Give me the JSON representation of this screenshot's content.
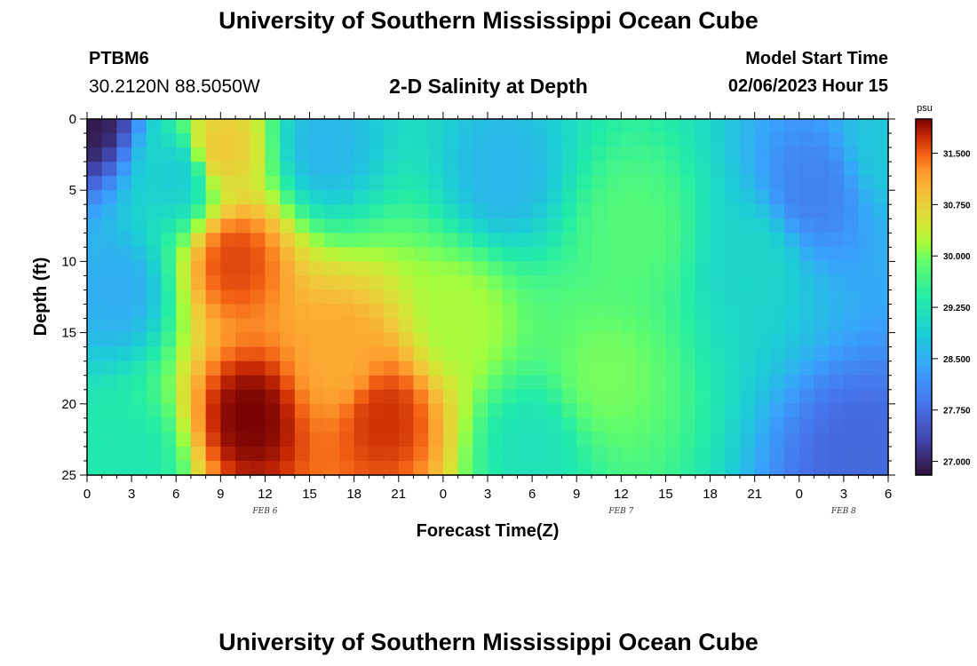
{
  "header": {
    "title": "University of Southern Mississippi Ocean Cube",
    "station_id": "PTBM6",
    "station_coords": "30.2120N  88.5050W",
    "plot_title": "2-D Salinity at Depth",
    "start_label": "Model Start Time",
    "start_value": "02/06/2023 Hour 15"
  },
  "footer": {
    "title": "University of Southern Mississippi Ocean Cube"
  },
  "chart_data": {
    "type": "heatmap",
    "xlabel": "Forecast Time(Z)",
    "ylabel": "Depth (ft)",
    "x_tick_labels": [
      "0",
      "3",
      "6",
      "9",
      "12",
      "15",
      "18",
      "21",
      "0",
      "3",
      "6",
      "9",
      "12",
      "15",
      "18",
      "21",
      "0",
      "3",
      "6"
    ],
    "x_range_hours": [
      0,
      54
    ],
    "date_labels": [
      {
        "label": "FEB 6",
        "hour": 12
      },
      {
        "label": "FEB 7",
        "hour": 36
      },
      {
        "label": "FEB 8",
        "hour": 51
      }
    ],
    "y_tick_labels": [
      "0",
      "5",
      "10",
      "15",
      "20",
      "25"
    ],
    "ylim": [
      0,
      25
    ],
    "y_inverted": true,
    "colorbar": {
      "unit": "psu",
      "range": [
        26.8,
        32.0
      ],
      "tick_labels": [
        "27.000",
        "27.750",
        "28.500",
        "29.250",
        "30.000",
        "30.750",
        "31.500"
      ],
      "tick_values": [
        27.0,
        27.75,
        28.5,
        29.25,
        30.0,
        30.75,
        31.5
      ],
      "colormap": "turbo"
    },
    "grid_resolution_hours": 1,
    "grid_resolution_ft": 1,
    "features": [
      {
        "t": 0,
        "d": 0,
        "s": 26.9
      },
      {
        "t": 2,
        "d": 12,
        "s": 28.5
      },
      {
        "t": 3,
        "d": 24,
        "s": 29.3
      },
      {
        "t": 6,
        "d": 4,
        "s": 28.9
      },
      {
        "t": 9,
        "d": 2,
        "s": 30.8
      },
      {
        "t": 10,
        "d": 10,
        "s": 31.6
      },
      {
        "t": 11,
        "d": 21,
        "s": 32.0
      },
      {
        "t": 16,
        "d": 2,
        "s": 28.6
      },
      {
        "t": 17,
        "d": 17,
        "s": 31.1
      },
      {
        "t": 20,
        "d": 21,
        "s": 31.7
      },
      {
        "t": 25,
        "d": 14,
        "s": 30.2
      },
      {
        "t": 28,
        "d": 4,
        "s": 28.6
      },
      {
        "t": 30,
        "d": 23,
        "s": 29.2
      },
      {
        "t": 35,
        "d": 18,
        "s": 30.0
      },
      {
        "t": 37,
        "d": 8,
        "s": 29.8
      },
      {
        "t": 45,
        "d": 10,
        "s": 29.0
      },
      {
        "t": 49,
        "d": 5,
        "s": 28.0
      },
      {
        "t": 52,
        "d": 24,
        "s": 27.7
      },
      {
        "t": 54,
        "d": 2,
        "s": 28.8
      }
    ]
  }
}
